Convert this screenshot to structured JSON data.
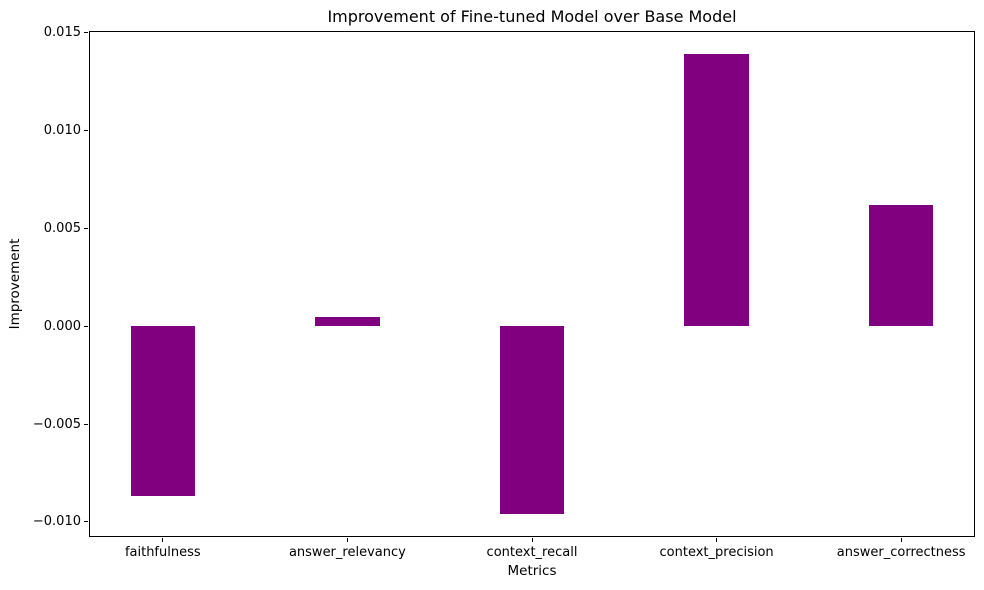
{
  "figure": {
    "background": "#ffffff",
    "text_color": "#000000",
    "spine_color": "#000000"
  },
  "chart_data": {
    "type": "bar",
    "title": "Improvement of Fine-tuned Model over Base Model",
    "xlabel": "Metrics",
    "ylabel": "Improvement",
    "categories": [
      "faithfulness",
      "answer_relevancy",
      "context_recall",
      "context_precision",
      "answer_correctness"
    ],
    "values": [
      -0.0087,
      0.00045,
      -0.0096,
      0.0139,
      0.0062
    ],
    "bar_color": "#800080",
    "ylim": [
      -0.010775,
      0.015075
    ],
    "yticks": {
      "values": [
        0.015,
        0.01,
        0.005,
        0.0,
        -0.005,
        -0.01
      ],
      "labels": [
        "0.015",
        "0.010",
        "0.005",
        "0.000",
        "−0.005",
        "−0.010"
      ]
    },
    "xlim_units": [
      -0.4,
      4.4
    ],
    "bar_width_units": 0.35,
    "grid": false,
    "legend": null
  }
}
